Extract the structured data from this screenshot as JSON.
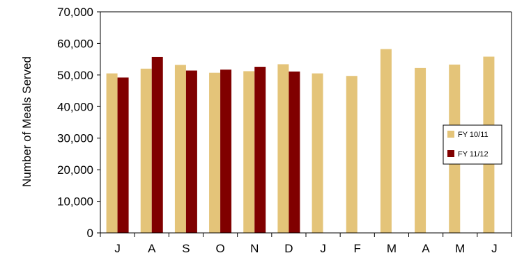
{
  "chart_data": {
    "type": "bar",
    "categories": [
      "J",
      "A",
      "S",
      "O",
      "N",
      "D",
      "J",
      "F",
      "M",
      "A",
      "M",
      "J"
    ],
    "series": [
      {
        "name": "FY 10/11",
        "color": "#e4c479",
        "values": [
          50500,
          52000,
          53200,
          50700,
          51200,
          53400,
          50500,
          49700,
          58200,
          52200,
          53300,
          55800
        ]
      },
      {
        "name": "FY 11/12",
        "color": "#800000",
        "values": [
          49200,
          55700,
          51400,
          51700,
          52600,
          51100,
          null,
          null,
          null,
          null,
          null,
          null
        ]
      }
    ],
    "ylabel": "Number of Meals Served",
    "ylim": [
      0,
      70000
    ],
    "yticks": [
      0,
      10000,
      20000,
      30000,
      40000,
      50000,
      60000,
      70000
    ],
    "ytick_labels": [
      "0",
      "10,000",
      "20,000",
      "30,000",
      "40,000",
      "50,000",
      "60,000",
      "70,000"
    ],
    "grid": false,
    "legend_position": "right"
  }
}
